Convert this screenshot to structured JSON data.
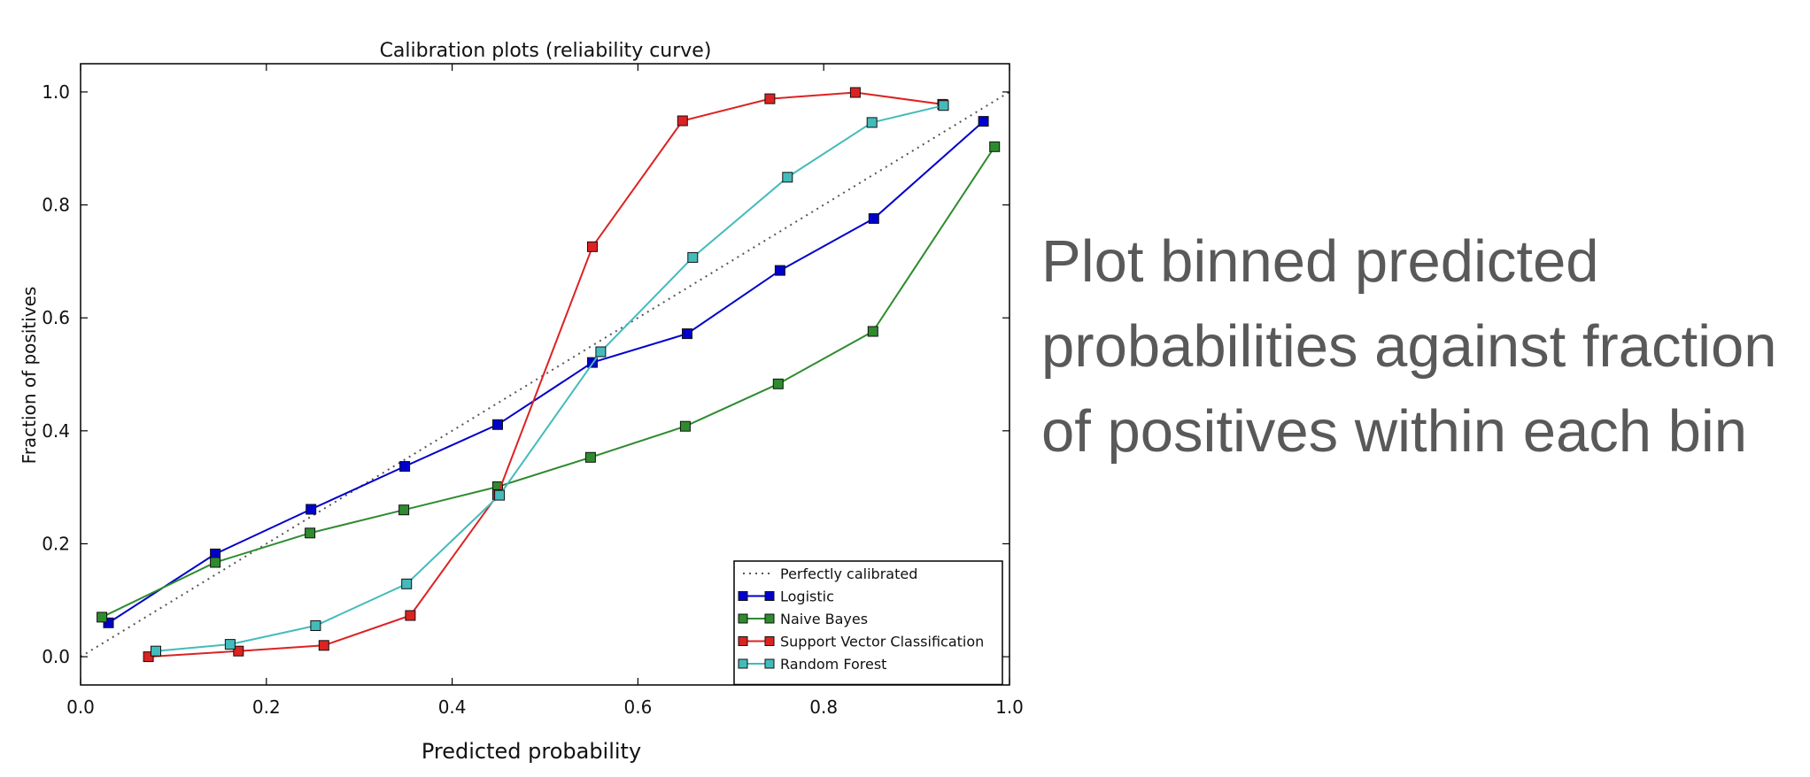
{
  "caption": {
    "lines": [
      "Plot binned predicted",
      "probabilities against fraction",
      "of positives within each bin"
    ]
  },
  "chart_data": {
    "type": "line",
    "title": "Calibration plots  (reliability curve)",
    "xlabel": "Predicted probability",
    "ylabel": "Fraction of positives",
    "xlim": [
      0.0,
      1.0
    ],
    "ylim": [
      -0.05,
      1.05
    ],
    "xticks": [
      "0.0",
      "0.2",
      "0.4",
      "0.6",
      "0.8",
      "1.0"
    ],
    "yticks": [
      "0.0",
      "0.2",
      "0.4",
      "0.6",
      "0.8",
      "1.0"
    ],
    "grid": false,
    "legend_position": "lower-right",
    "series": [
      {
        "name": "Perfectly calibrated",
        "color": "#555555",
        "style": "dotted",
        "marker": "none",
        "x": [
          0.0,
          1.0
        ],
        "y": [
          0.0,
          1.0
        ]
      },
      {
        "name": "Logistic",
        "color": "#0000cc",
        "style": "solid",
        "marker": "square",
        "x": [
          0.03,
          0.145,
          0.248,
          0.349,
          0.449,
          0.551,
          0.653,
          0.753,
          0.854,
          0.972
        ],
        "y": [
          0.06,
          0.182,
          0.261,
          0.337,
          0.411,
          0.521,
          0.572,
          0.684,
          0.776,
          0.948
        ]
      },
      {
        "name": "Naive Bayes",
        "color": "#2e8b2e",
        "style": "solid",
        "marker": "square",
        "x": [
          0.023,
          0.145,
          0.247,
          0.348,
          0.449,
          0.549,
          0.651,
          0.751,
          0.853,
          0.984
        ],
        "y": [
          0.07,
          0.167,
          0.219,
          0.26,
          0.301,
          0.353,
          0.408,
          0.483,
          0.576,
          0.903
        ]
      },
      {
        "name": "Support Vector Classification",
        "color": "#dd2222",
        "style": "solid",
        "marker": "square",
        "x": [
          0.073,
          0.17,
          0.262,
          0.355,
          0.449,
          0.551,
          0.648,
          0.742,
          0.834,
          0.928
        ],
        "y": [
          0.0,
          0.01,
          0.02,
          0.073,
          0.287,
          0.726,
          0.949,
          0.988,
          0.999,
          0.978
        ]
      },
      {
        "name": "Random Forest",
        "color": "#44bbbb",
        "style": "solid",
        "marker": "square",
        "x": [
          0.081,
          0.161,
          0.253,
          0.351,
          0.451,
          0.56,
          0.659,
          0.761,
          0.852,
          0.929
        ],
        "y": [
          0.01,
          0.022,
          0.055,
          0.129,
          0.286,
          0.54,
          0.707,
          0.849,
          0.946,
          0.976
        ]
      }
    ]
  }
}
